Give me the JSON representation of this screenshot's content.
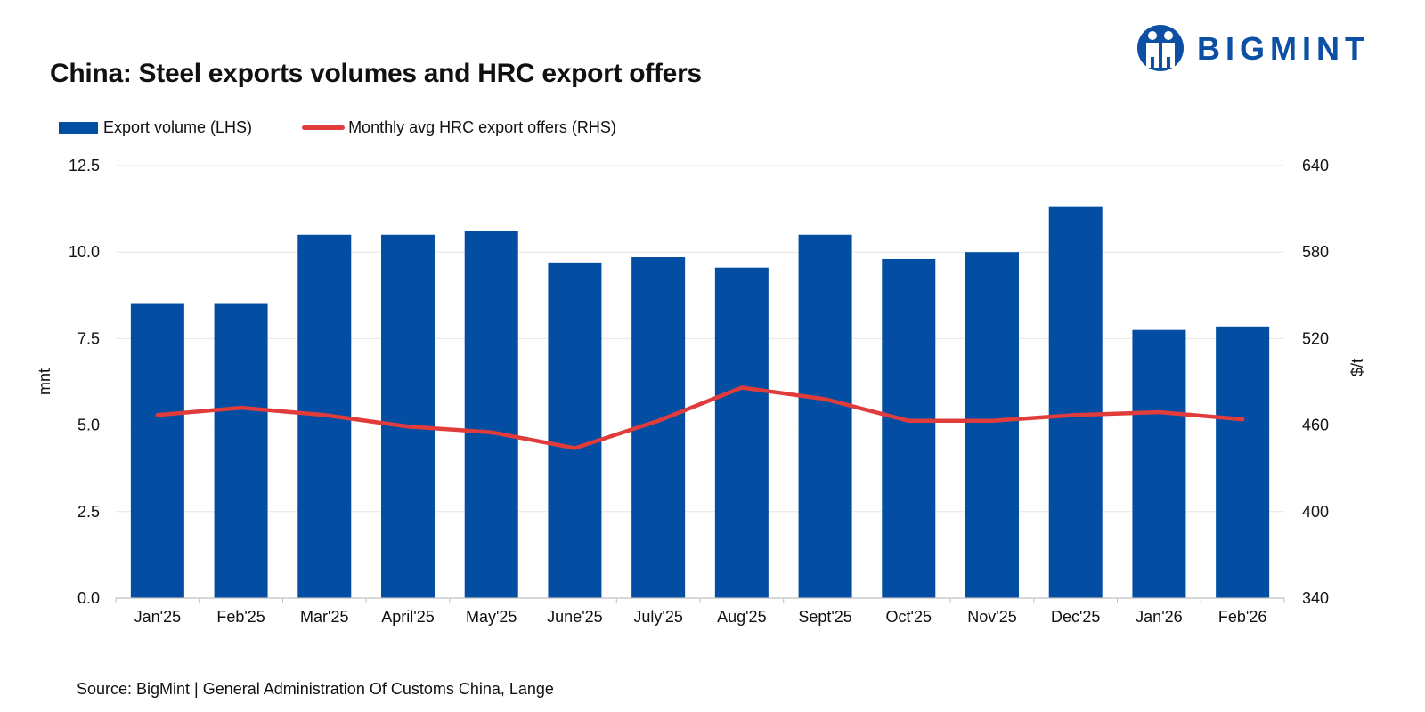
{
  "header": {
    "title": "China: Steel exports volumes and HRC export offers"
  },
  "logo": {
    "text": "BIGMINT",
    "color": "#0d4fa3"
  },
  "legend": {
    "bar_label": "Export volume (LHS)",
    "line_label": "Monthly avg HRC export offers (RHS)"
  },
  "footer": {
    "source": "Source: BigMint | General Administration Of Customs China, Lange"
  },
  "colors": {
    "bar": "#034ea2",
    "line": "#e03c3c",
    "grid": "#e6e6e6"
  },
  "chart_data": {
    "type": "bar",
    "title": "China: Steel exports volumes and HRC export offers",
    "categories": [
      "Jan'25",
      "Feb'25",
      "Mar'25",
      "April'25",
      "May'25",
      "June'25",
      "July'25",
      "Aug'25",
      "Sept'25",
      "Oct'25",
      "Nov'25",
      "Dec'25",
      "Jan'26",
      "Feb'26"
    ],
    "series": [
      {
        "name": "Export volume (LHS)",
        "type": "bar",
        "axis": "left",
        "values": [
          8.5,
          8.5,
          10.5,
          10.5,
          10.6,
          9.7,
          9.85,
          9.55,
          10.5,
          9.8,
          10.0,
          11.3,
          7.75,
          7.85
        ]
      },
      {
        "name": "Monthly avg HRC export offers (RHS)",
        "type": "line",
        "axis": "right",
        "values": [
          467,
          472,
          467,
          459,
          455,
          444,
          463,
          486,
          478,
          463,
          463,
          467,
          469,
          464
        ]
      }
    ],
    "ylabel": "mnt",
    "ylim": [
      0,
      12.5
    ],
    "yticks": [
      "0.0",
      "2.5",
      "5.0",
      "7.5",
      "10.0",
      "12.5"
    ],
    "y2label": "$/t",
    "y2lim": [
      340,
      640
    ],
    "y2ticks": [
      "340",
      "400",
      "460",
      "520",
      "580",
      "640"
    ],
    "grid": true,
    "legend": "top-left"
  }
}
